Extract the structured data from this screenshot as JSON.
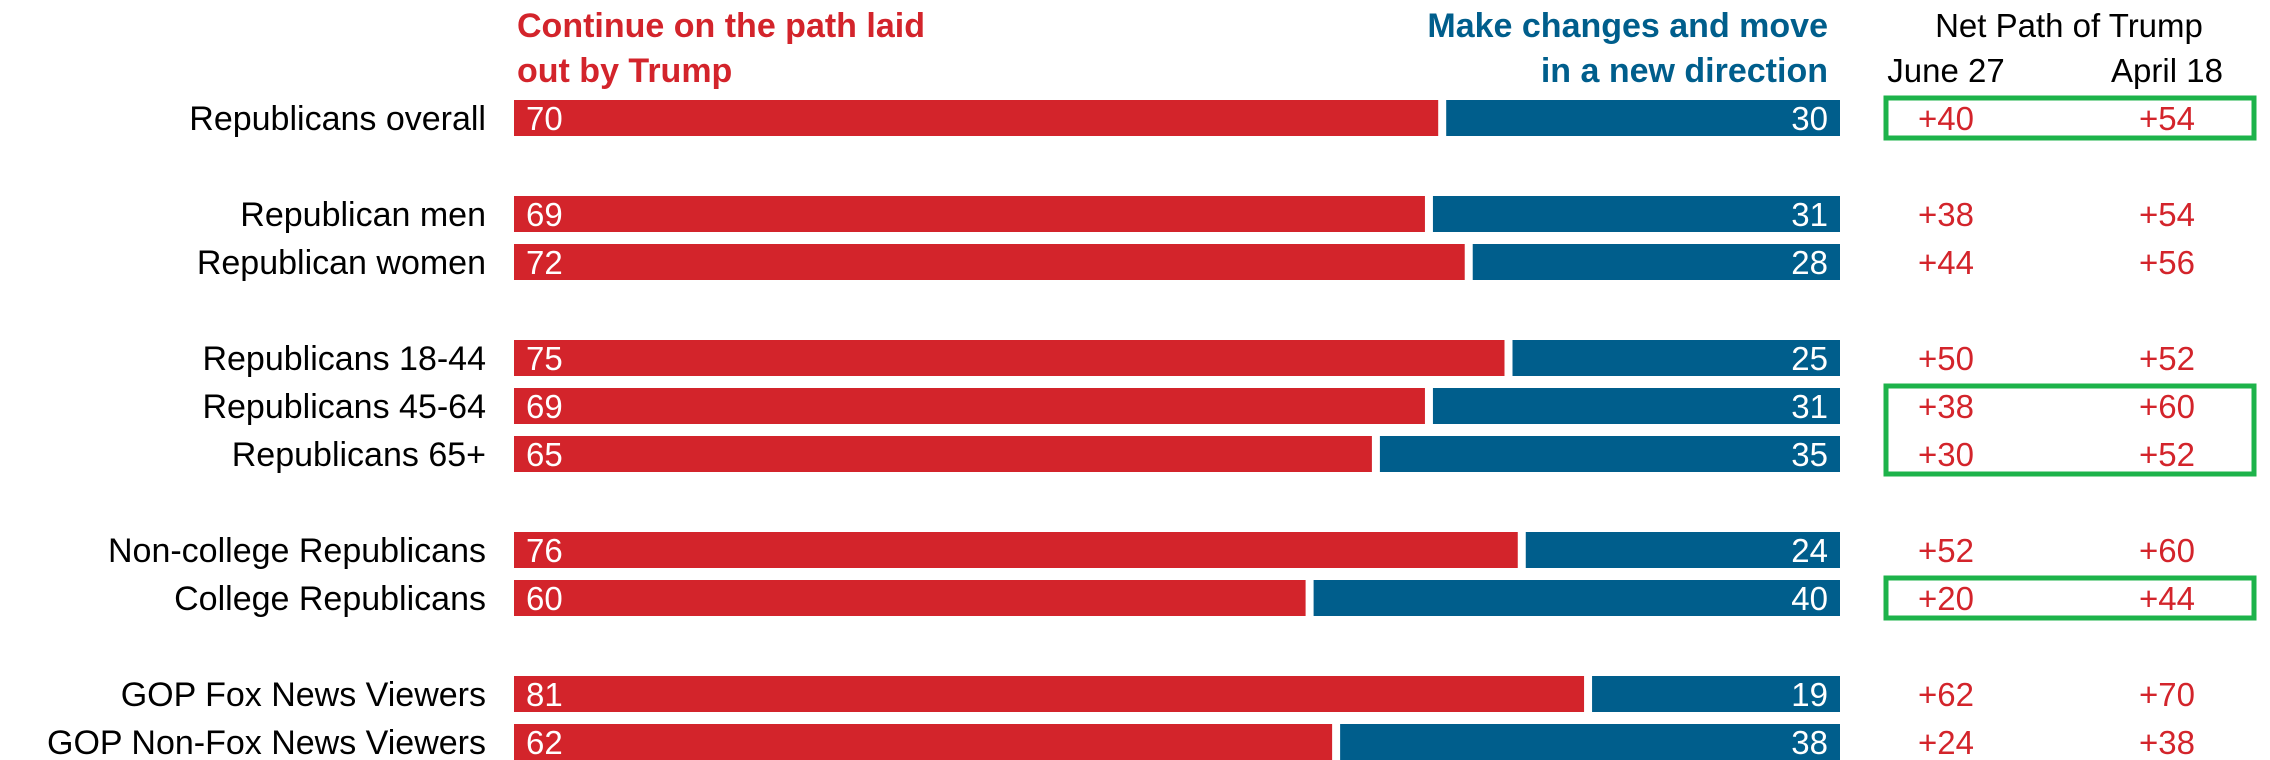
{
  "colors": {
    "continue": "#d3242b",
    "change": "#005e8c",
    "net": "#d3242b",
    "highlight": "#1db34a",
    "label": "#000000",
    "bar_text": "#ffffff"
  },
  "headers": {
    "continue_line1": "Continue on the path laid",
    "continue_line2": "out by Trump",
    "change_line1": "Make changes and move",
    "change_line2": "in a new direction",
    "net_title": "Net Path of Trump",
    "net_col1": "June 27",
    "net_col2": "April 18"
  },
  "chart_data": {
    "type": "bar",
    "stacked": true,
    "orientation": "horizontal",
    "categories": [
      "Republicans overall",
      "Republican men",
      "Republican women",
      "Republicans 18-44",
      "Republicans 45-64",
      "Republicans 65+",
      "Non-college Republicans",
      "College Republicans",
      "GOP Fox News Viewers",
      "GOP Non-Fox News Viewers"
    ],
    "series": [
      {
        "name": "Continue on the path laid out by Trump",
        "values": [
          70,
          69,
          72,
          75,
          69,
          65,
          76,
          60,
          81,
          62
        ]
      },
      {
        "name": "Make changes and move in a new direction",
        "values": [
          30,
          31,
          28,
          25,
          31,
          35,
          24,
          40,
          19,
          38
        ]
      }
    ],
    "net": {
      "title": "Net Path of Trump",
      "columns": [
        "June 27",
        "April 18"
      ],
      "values": [
        [
          "+40",
          "+54"
        ],
        [
          "+38",
          "+54"
        ],
        [
          "+44",
          "+56"
        ],
        [
          "+50",
          "+52"
        ],
        [
          "+38",
          "+60"
        ],
        [
          "+30",
          "+52"
        ],
        [
          "+52",
          "+60"
        ],
        [
          "+20",
          "+44"
        ],
        [
          "+62",
          "+70"
        ],
        [
          "+24",
          "+38"
        ]
      ],
      "highlighted_rows": [
        [
          0
        ],
        [
          4,
          5
        ],
        [
          7
        ]
      ]
    },
    "xlim": [
      0,
      100
    ]
  }
}
